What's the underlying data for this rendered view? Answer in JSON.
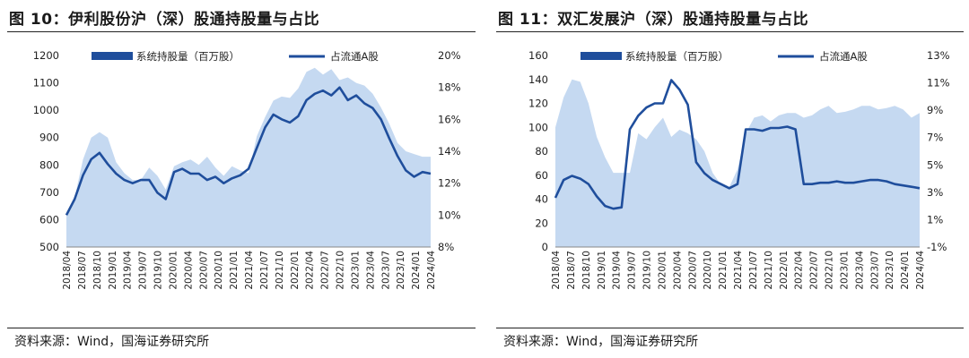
{
  "chart_data": [
    {
      "type": "area+line",
      "title": "图 10：伊利股份沪（深）股通持股量与占比",
      "source": "资料来源：Wind，国海证券研究所",
      "left_axis": {
        "min": 500,
        "max": 1200,
        "ticks": [
          500,
          600,
          700,
          800,
          900,
          1000,
          1100,
          1200
        ]
      },
      "right_axis": {
        "min": 8,
        "max": 20,
        "ticks": [
          "8%",
          "10%",
          "12%",
          "14%",
          "16%",
          "18%",
          "20%"
        ]
      },
      "x_labels": [
        "2018/04",
        "2018/07",
        "2018/10",
        "2019/01",
        "2019/04",
        "2019/07",
        "2019/10",
        "2020/01",
        "2020/04",
        "2020/07",
        "2020/10",
        "2021/01",
        "2021/04",
        "2021/07",
        "2021/10",
        "2022/01",
        "2022/04",
        "2022/07",
        "2022/10",
        "2023/01",
        "2023/04",
        "2023/07",
        "2023/10",
        "2024/01",
        "2024/04"
      ],
      "series": [
        {
          "name": "系统持股量（百万股）",
          "axis": "left",
          "style": "area",
          "color": "#c5d9f1",
          "values": [
            615,
            680,
            820,
            900,
            920,
            900,
            810,
            770,
            745,
            745,
            790,
            760,
            710,
            795,
            810,
            820,
            800,
            830,
            790,
            760,
            795,
            780,
            770,
            905,
            975,
            1035,
            1050,
            1045,
            1080,
            1140,
            1155,
            1130,
            1150,
            1110,
            1120,
            1100,
            1090,
            1060,
            1010,
            950,
            880,
            850,
            840,
            830,
            830
          ]
        },
        {
          "name": "占流通A股",
          "axis": "right",
          "style": "line",
          "color": "#1f4e9c",
          "values": [
            10.0,
            11.0,
            12.5,
            13.5,
            13.9,
            13.2,
            12.6,
            12.2,
            12.0,
            12.2,
            12.2,
            11.4,
            11.0,
            12.7,
            12.9,
            12.6,
            12.6,
            12.2,
            12.4,
            12.0,
            12.3,
            12.5,
            12.9,
            14.2,
            15.5,
            16.3,
            16.0,
            15.8,
            16.2,
            17.2,
            17.6,
            17.8,
            17.5,
            18.0,
            17.2,
            17.5,
            17.0,
            16.7,
            16.0,
            14.8,
            13.7,
            12.8,
            12.4,
            12.7,
            12.6
          ]
        }
      ]
    },
    {
      "type": "area+line",
      "title": "图 11：双汇发展沪（深）股通持股量与占比",
      "source": "资料来源：Wind，国海证券研究所",
      "left_axis": {
        "min": 0,
        "max": 160,
        "ticks": [
          0,
          20,
          40,
          60,
          80,
          100,
          120,
          140,
          160
        ]
      },
      "right_axis": {
        "min": -1,
        "max": 13,
        "ticks": [
          "-1%",
          "1%",
          "3%",
          "5%",
          "7%",
          "9%",
          "11%",
          "13%"
        ]
      },
      "x_labels": [
        "2018/04",
        "2018/07",
        "2018/10",
        "2019/01",
        "2019/04",
        "2019/07",
        "2019/10",
        "2020/01",
        "2020/04",
        "2020/07",
        "2020/10",
        "2021/01",
        "2021/04",
        "2021/07",
        "2021/10",
        "2022/01",
        "2022/04",
        "2022/07",
        "2022/10",
        "2023/01",
        "2023/04",
        "2023/07",
        "2023/10",
        "2024/01",
        "2024/04"
      ],
      "series": [
        {
          "name": "系统持股量（百万股）",
          "axis": "left",
          "style": "area",
          "color": "#c5d9f1",
          "values": [
            100,
            125,
            140,
            138,
            120,
            92,
            75,
            62,
            62,
            62,
            95,
            90,
            100,
            108,
            92,
            98,
            95,
            90,
            80,
            62,
            52,
            50,
            65,
            95,
            108,
            110,
            105,
            110,
            112,
            112,
            108,
            110,
            115,
            118,
            112,
            113,
            115,
            118,
            118,
            115,
            116,
            118,
            115,
            108,
            112
          ]
        },
        {
          "name": "占流通A股",
          "axis": "right",
          "style": "line",
          "color": "#1f4e9c",
          "values": [
            2.6,
            3.9,
            4.2,
            4.0,
            3.6,
            2.7,
            2.0,
            1.8,
            1.9,
            7.6,
            8.6,
            9.2,
            9.5,
            9.5,
            11.2,
            10.5,
            9.4,
            5.2,
            4.4,
            3.9,
            3.6,
            3.3,
            3.6,
            7.6,
            7.6,
            7.5,
            7.7,
            7.7,
            7.8,
            7.6,
            3.6,
            3.6,
            3.7,
            3.7,
            3.8,
            3.7,
            3.7,
            3.8,
            3.9,
            3.9,
            3.8,
            3.6,
            3.5,
            3.4,
            3.3
          ]
        }
      ]
    }
  ]
}
